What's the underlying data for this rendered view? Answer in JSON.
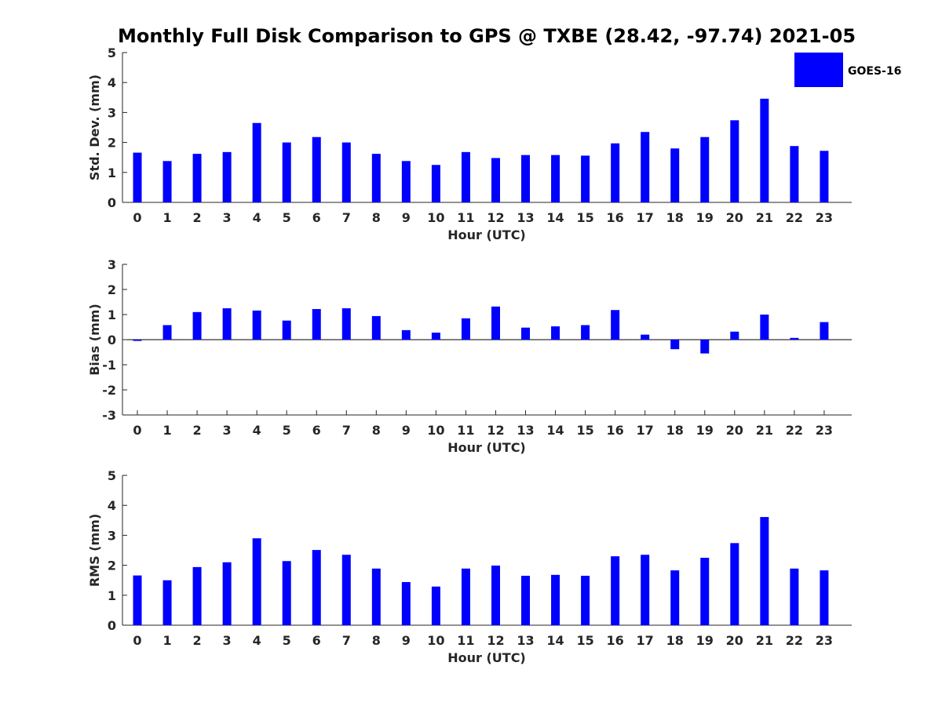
{
  "chart_data": {
    "type": "bar",
    "title": "Monthly Full Disk Comparison to GPS @ TXBE (28.42, -97.74) 2021-05",
    "legend": {
      "entries": [
        "GOES-16"
      ],
      "position": "top-right"
    },
    "bar_color": "#0000ff",
    "categories": [
      "0",
      "1",
      "2",
      "3",
      "4",
      "5",
      "6",
      "7",
      "8",
      "9",
      "10",
      "11",
      "12",
      "13",
      "14",
      "15",
      "16",
      "17",
      "18",
      "19",
      "20",
      "21",
      "22",
      "23"
    ],
    "panels": [
      {
        "xlabel": "Hour (UTC)",
        "ylabel": "Std. Dev. (mm)",
        "ylim": [
          0,
          5
        ],
        "yticks": [
          "0",
          "1",
          "2",
          "3",
          "4",
          "5"
        ],
        "series": [
          {
            "name": "GOES-16",
            "values": [
              1.66,
              1.38,
              1.62,
              1.68,
              2.65,
              2.0,
              2.18,
              2.0,
              1.62,
              1.38,
              1.25,
              1.68,
              1.48,
              1.58,
              1.58,
              1.56,
              1.97,
              2.35,
              1.8,
              2.18,
              2.74,
              3.46,
              1.88,
              1.72
            ]
          }
        ]
      },
      {
        "xlabel": "Hour (UTC)",
        "ylabel": "Bias (mm)",
        "ylim": [
          -3,
          3
        ],
        "yticks": [
          "-3",
          "-2",
          "-1",
          "0",
          "1",
          "2",
          "3"
        ],
        "series": [
          {
            "name": "GOES-16",
            "values": [
              -0.05,
              0.58,
              1.1,
              1.25,
              1.16,
              0.76,
              1.22,
              1.25,
              0.94,
              0.38,
              0.28,
              0.85,
              1.32,
              0.48,
              0.53,
              0.58,
              1.18,
              0.2,
              -0.38,
              -0.55,
              0.32,
              1.0,
              0.07,
              0.7
            ]
          }
        ]
      },
      {
        "xlabel": "Hour (UTC)",
        "ylabel": "RMS (mm)",
        "ylim": [
          0,
          5
        ],
        "yticks": [
          "0",
          "1",
          "2",
          "3",
          "4",
          "5"
        ],
        "series": [
          {
            "name": "GOES-16",
            "values": [
              1.66,
              1.5,
              1.94,
              2.1,
              2.9,
              2.14,
              2.51,
              2.35,
              1.89,
              1.44,
              1.29,
              1.89,
              1.99,
              1.65,
              1.68,
              1.65,
              2.3,
              2.35,
              1.83,
              2.25,
              2.74,
              3.61,
              1.89,
              1.83
            ]
          }
        ]
      }
    ]
  }
}
